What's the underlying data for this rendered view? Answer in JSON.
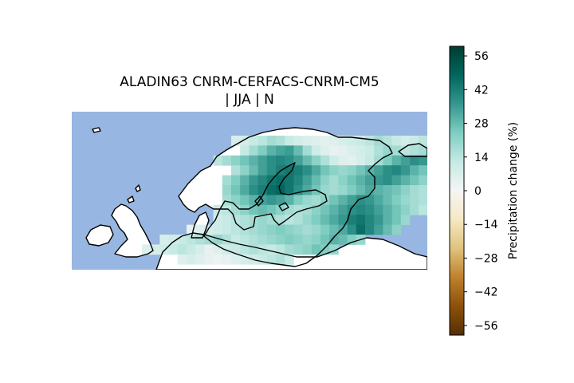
{
  "title_lines": [
    "ALADIN63 CNRM-CERFACS-CNRM-CM5",
    "| JJA | N"
  ],
  "colorbar": {
    "label": "Precipitation change (%)",
    "ticks": [
      "56",
      "42",
      "28",
      "14",
      "0",
      "−14",
      "−28",
      "−42",
      "−56"
    ],
    "tick_values": [
      56,
      42,
      28,
      14,
      0,
      -14,
      -28,
      -42,
      -56
    ],
    "range": [
      -60,
      60
    ],
    "colormap": "BrBG",
    "stops": [
      "#543005",
      "#8c510a",
      "#bf812d",
      "#dfc27d",
      "#f6e8c3",
      "#f5f5f5",
      "#c7eae5",
      "#80cdc1",
      "#35978f",
      "#01665e",
      "#003c30"
    ]
  },
  "map_colors": {
    "ocean": "#97b6e1",
    "land": "#ffffff",
    "coast": "#000000"
  },
  "chart_data": {
    "type": "heatmap",
    "region": "Northern Europe",
    "cells": [
      [
        0,
        5,
        8
      ],
      [
        0,
        6,
        9
      ],
      [
        0,
        7,
        12
      ],
      [
        0,
        8,
        14
      ],
      [
        0,
        9,
        18
      ],
      [
        0,
        10,
        16
      ],
      [
        0,
        11,
        12
      ],
      [
        0,
        12,
        9
      ],
      [
        0,
        13,
        7
      ],
      [
        0,
        14,
        6
      ],
      [
        0,
        15,
        5
      ],
      [
        0,
        16,
        6
      ],
      [
        0,
        17,
        8
      ],
      [
        0,
        18,
        10
      ],
      [
        0,
        19,
        12
      ],
      [
        0,
        20,
        14
      ],
      [
        0,
        21,
        18
      ],
      [
        0,
        22,
        15
      ],
      [
        0,
        23,
        12
      ],
      [
        0,
        24,
        9
      ],
      [
        0,
        25,
        11
      ],
      [
        0,
        26,
        14
      ],
      [
        0,
        27,
        16
      ],
      [
        1,
        6,
        12
      ],
      [
        1,
        7,
        18
      ],
      [
        1,
        8,
        24
      ],
      [
        1,
        9,
        30
      ],
      [
        1,
        10,
        33
      ],
      [
        1,
        11,
        35
      ],
      [
        1,
        12,
        28
      ],
      [
        1,
        13,
        18
      ],
      [
        1,
        14,
        10
      ],
      [
        1,
        15,
        6
      ],
      [
        1,
        16,
        4
      ],
      [
        1,
        17,
        5
      ],
      [
        1,
        18,
        7
      ],
      [
        1,
        19,
        9
      ],
      [
        1,
        20,
        11
      ],
      [
        1,
        21,
        16
      ],
      [
        1,
        22,
        20
      ],
      [
        1,
        23,
        18
      ],
      [
        1,
        24,
        14
      ],
      [
        1,
        25,
        16
      ],
      [
        1,
        26,
        18
      ],
      [
        1,
        27,
        20
      ],
      [
        1,
        28,
        16
      ],
      [
        1,
        29,
        12
      ],
      [
        1,
        30,
        10
      ],
      [
        1,
        31,
        8
      ],
      [
        1,
        32,
        10
      ],
      [
        1,
        33,
        12
      ],
      [
        1,
        34,
        14
      ],
      [
        2,
        3,
        14
      ],
      [
        2,
        4,
        18
      ],
      [
        2,
        5,
        22
      ],
      [
        2,
        6,
        26
      ],
      [
        2,
        7,
        30
      ],
      [
        2,
        8,
        34
      ],
      [
        2,
        9,
        38
      ],
      [
        2,
        10,
        40
      ],
      [
        2,
        11,
        38
      ],
      [
        2,
        12,
        34
      ],
      [
        2,
        13,
        28
      ],
      [
        2,
        14,
        22
      ],
      [
        2,
        15,
        16
      ],
      [
        2,
        16,
        10
      ],
      [
        2,
        17,
        6
      ],
      [
        2,
        18,
        5
      ],
      [
        2,
        19,
        8
      ],
      [
        2,
        20,
        12
      ],
      [
        2,
        21,
        18
      ],
      [
        2,
        22,
        24
      ],
      [
        2,
        23,
        30
      ],
      [
        2,
        24,
        34
      ],
      [
        2,
        25,
        38
      ],
      [
        2,
        26,
        36
      ],
      [
        2,
        27,
        32
      ],
      [
        2,
        28,
        28
      ],
      [
        2,
        29,
        30
      ],
      [
        2,
        30,
        34
      ],
      [
        2,
        31,
        30
      ],
      [
        2,
        32,
        24
      ],
      [
        2,
        33,
        18
      ],
      [
        2,
        34,
        14
      ],
      [
        2,
        35,
        12
      ],
      [
        3,
        5,
        16
      ],
      [
        3,
        6,
        22
      ],
      [
        3,
        7,
        28
      ],
      [
        3,
        8,
        34
      ],
      [
        3,
        9,
        38
      ],
      [
        3,
        10,
        42
      ],
      [
        3,
        11,
        44
      ],
      [
        3,
        12,
        42
      ],
      [
        3,
        13,
        38
      ],
      [
        3,
        14,
        32
      ],
      [
        3,
        15,
        26
      ],
      [
        3,
        16,
        22
      ],
      [
        3,
        17,
        20
      ],
      [
        3,
        18,
        22
      ],
      [
        3,
        19,
        26
      ],
      [
        3,
        20,
        30
      ],
      [
        3,
        21,
        34
      ],
      [
        3,
        22,
        38
      ],
      [
        3,
        23,
        40
      ],
      [
        3,
        24,
        36
      ],
      [
        3,
        25,
        30
      ],
      [
        3,
        26,
        26
      ],
      [
        3,
        27,
        30
      ],
      [
        3,
        28,
        34
      ],
      [
        3,
        29,
        30
      ],
      [
        3,
        30,
        24
      ],
      [
        3,
        31,
        18
      ],
      [
        3,
        32,
        14
      ],
      [
        3,
        33,
        12
      ],
      [
        3,
        34,
        10
      ],
      [
        4,
        4,
        18
      ],
      [
        4,
        5,
        24
      ],
      [
        4,
        6,
        30
      ],
      [
        4,
        7,
        36
      ],
      [
        4,
        8,
        40
      ],
      [
        4,
        9,
        44
      ],
      [
        4,
        10,
        46
      ],
      [
        4,
        11,
        44
      ],
      [
        4,
        12,
        40
      ],
      [
        4,
        13,
        34
      ],
      [
        4,
        14,
        28
      ],
      [
        4,
        15,
        22
      ],
      [
        4,
        16,
        18
      ],
      [
        4,
        17,
        22
      ],
      [
        4,
        18,
        26
      ],
      [
        4,
        19,
        30
      ],
      [
        4,
        20,
        34
      ],
      [
        4,
        21,
        36
      ],
      [
        4,
        22,
        38
      ],
      [
        4,
        23,
        34
      ],
      [
        4,
        24,
        30
      ],
      [
        4,
        25,
        26
      ],
      [
        4,
        26,
        22
      ],
      [
        4,
        27,
        20
      ],
      [
        4,
        28,
        18
      ],
      [
        4,
        29,
        16
      ],
      [
        4,
        30,
        14
      ],
      [
        4,
        31,
        12
      ],
      [
        4,
        32,
        10
      ],
      [
        5,
        4,
        20
      ],
      [
        5,
        5,
        26
      ],
      [
        5,
        6,
        32
      ],
      [
        5,
        7,
        38
      ],
      [
        5,
        8,
        42
      ],
      [
        5,
        9,
        46
      ],
      [
        5,
        10,
        48
      ],
      [
        5,
        11,
        44
      ],
      [
        5,
        12,
        38
      ],
      [
        5,
        13,
        32
      ],
      [
        5,
        14,
        26
      ],
      [
        5,
        15,
        20
      ],
      [
        5,
        16,
        18
      ],
      [
        5,
        17,
        20
      ],
      [
        5,
        18,
        24
      ],
      [
        5,
        19,
        28
      ],
      [
        5,
        20,
        32
      ],
      [
        5,
        21,
        30
      ],
      [
        5,
        22,
        28
      ],
      [
        5,
        23,
        26
      ],
      [
        5,
        24,
        22
      ],
      [
        5,
        25,
        18
      ],
      [
        5,
        26,
        16
      ],
      [
        5,
        27,
        14
      ],
      [
        5,
        28,
        12
      ],
      [
        5,
        29,
        10
      ],
      [
        5,
        30,
        8
      ],
      [
        6,
        4,
        18
      ],
      [
        6,
        5,
        22
      ],
      [
        6,
        6,
        26
      ],
      [
        6,
        7,
        30
      ],
      [
        6,
        8,
        34
      ],
      [
        6,
        9,
        36
      ],
      [
        6,
        10,
        34
      ],
      [
        6,
        11,
        30
      ],
      [
        6,
        12,
        24
      ],
      [
        6,
        13,
        20
      ],
      [
        6,
        14,
        18
      ],
      [
        6,
        15,
        22
      ],
      [
        6,
        16,
        26
      ],
      [
        6,
        17,
        30
      ],
      [
        6,
        18,
        34
      ],
      [
        6,
        19,
        38
      ],
      [
        6,
        20,
        36
      ],
      [
        6,
        21,
        32
      ],
      [
        6,
        22,
        28
      ],
      [
        6,
        23,
        24
      ],
      [
        6,
        24,
        20
      ],
      [
        6,
        25,
        18
      ],
      [
        6,
        26,
        16
      ],
      [
        6,
        27,
        14
      ],
      [
        6,
        28,
        12
      ],
      [
        7,
        3,
        12
      ],
      [
        7,
        4,
        14
      ],
      [
        7,
        5,
        18
      ],
      [
        7,
        6,
        22
      ],
      [
        7,
        7,
        26
      ],
      [
        7,
        8,
        28
      ],
      [
        7,
        9,
        26
      ],
      [
        7,
        10,
        22
      ],
      [
        7,
        11,
        18
      ],
      [
        7,
        12,
        16
      ],
      [
        7,
        13,
        18
      ],
      [
        7,
        14,
        22
      ],
      [
        7,
        15,
        26
      ],
      [
        7,
        16,
        30
      ],
      [
        7,
        17,
        34
      ],
      [
        7,
        18,
        38
      ],
      [
        7,
        19,
        40
      ],
      [
        7,
        20,
        38
      ],
      [
        7,
        21,
        34
      ],
      [
        7,
        22,
        30
      ],
      [
        7,
        23,
        26
      ],
      [
        7,
        24,
        22
      ],
      [
        7,
        25,
        18
      ],
      [
        7,
        26,
        14
      ],
      [
        8,
        3,
        10
      ],
      [
        8,
        4,
        12
      ],
      [
        8,
        5,
        14
      ],
      [
        8,
        6,
        16
      ],
      [
        8,
        7,
        18
      ],
      [
        8,
        8,
        20
      ],
      [
        8,
        9,
        18
      ],
      [
        8,
        10,
        16
      ],
      [
        8,
        11,
        14
      ],
      [
        8,
        12,
        16
      ],
      [
        8,
        13,
        20
      ],
      [
        8,
        14,
        24
      ],
      [
        8,
        15,
        28
      ],
      [
        8,
        16,
        32
      ],
      [
        8,
        17,
        36
      ],
      [
        8,
        18,
        42
      ],
      [
        8,
        19,
        44
      ],
      [
        8,
        20,
        40
      ],
      [
        8,
        21,
        36
      ],
      [
        8,
        22,
        30
      ],
      [
        8,
        23,
        26
      ],
      [
        8,
        24,
        20
      ],
      [
        9,
        0,
        4
      ],
      [
        9,
        1,
        6
      ],
      [
        9,
        2,
        8
      ],
      [
        9,
        3,
        10
      ],
      [
        9,
        4,
        12
      ],
      [
        9,
        5,
        14
      ],
      [
        9,
        6,
        16
      ],
      [
        9,
        7,
        18
      ],
      [
        9,
        8,
        20
      ],
      [
        9,
        9,
        22
      ],
      [
        9,
        10,
        24
      ],
      [
        9,
        11,
        22
      ],
      [
        9,
        12,
        20
      ],
      [
        9,
        13,
        18
      ],
      [
        9,
        14,
        20
      ],
      [
        9,
        15,
        24
      ],
      [
        9,
        16,
        28
      ],
      [
        9,
        17,
        32
      ],
      [
        9,
        18,
        38
      ],
      [
        9,
        19,
        46
      ],
      [
        9,
        20,
        40
      ],
      [
        9,
        21,
        34
      ],
      [
        9,
        22,
        28
      ],
      [
        9,
        23,
        22
      ],
      [
        10,
        -3,
        8
      ],
      [
        10,
        -2,
        10
      ],
      [
        10,
        -1,
        12
      ],
      [
        10,
        0,
        14
      ],
      [
        10,
        1,
        16
      ],
      [
        10,
        2,
        18
      ],
      [
        10,
        3,
        20
      ],
      [
        10,
        4,
        16
      ],
      [
        10,
        5,
        12
      ],
      [
        10,
        6,
        14
      ],
      [
        10,
        7,
        16
      ],
      [
        10,
        8,
        18
      ],
      [
        10,
        9,
        20
      ],
      [
        10,
        10,
        22
      ],
      [
        10,
        11,
        24
      ],
      [
        10,
        12,
        22
      ],
      [
        10,
        13,
        20
      ],
      [
        10,
        14,
        22
      ],
      [
        10,
        15,
        26
      ],
      [
        10,
        16,
        30
      ],
      [
        10,
        17,
        28
      ],
      [
        10,
        18,
        24
      ],
      [
        10,
        19,
        20
      ],
      [
        11,
        -5,
        6
      ],
      [
        11,
        -4,
        8
      ],
      [
        11,
        -3,
        10
      ],
      [
        11,
        -2,
        12
      ],
      [
        11,
        -1,
        14
      ],
      [
        11,
        0,
        12
      ],
      [
        11,
        1,
        8
      ],
      [
        11,
        2,
        4
      ],
      [
        11,
        3,
        6
      ],
      [
        11,
        4,
        10
      ],
      [
        11,
        5,
        12
      ],
      [
        11,
        6,
        14
      ],
      [
        11,
        7,
        16
      ],
      [
        11,
        8,
        14
      ],
      [
        11,
        9,
        12
      ],
      [
        11,
        10,
        14
      ],
      [
        11,
        11,
        18
      ],
      [
        11,
        12,
        20
      ],
      [
        11,
        13,
        22
      ],
      [
        11,
        14,
        26
      ],
      [
        11,
        15,
        24
      ],
      [
        11,
        16,
        20
      ],
      [
        12,
        -1,
        6
      ],
      [
        12,
        0,
        8
      ],
      [
        12,
        1,
        6
      ],
      [
        12,
        2,
        4
      ],
      [
        12,
        3,
        2
      ],
      [
        12,
        4,
        4
      ],
      [
        12,
        5,
        6
      ],
      [
        12,
        6,
        8
      ],
      [
        12,
        7,
        10
      ],
      [
        12,
        8,
        12
      ],
      [
        12,
        9,
        14
      ],
      [
        12,
        10,
        16
      ],
      [
        12,
        11,
        12
      ]
    ]
  }
}
